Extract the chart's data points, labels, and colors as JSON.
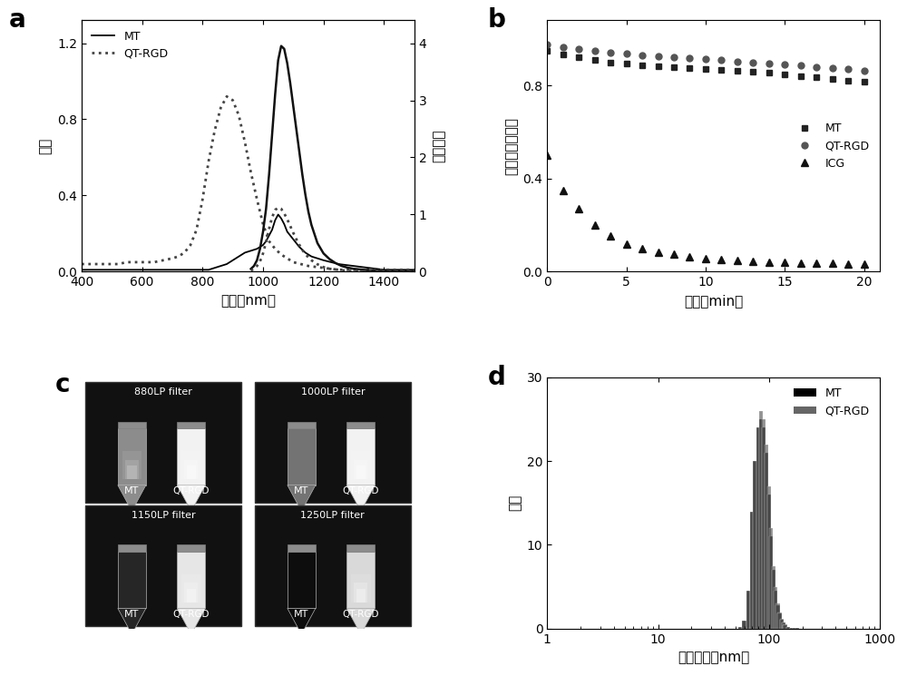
{
  "panel_a": {
    "xlabel": "波长（nm）",
    "ylabel_left": "吸收",
    "ylabel_right": "荆光强度",
    "xlim": [
      400,
      1500
    ],
    "ylim_left": [
      0,
      1.32
    ],
    "ylim_right": [
      0,
      4.4
    ],
    "yticks_left": [
      0.0,
      0.4,
      0.8,
      1.2
    ],
    "yticks_right": [
      0,
      1,
      2,
      3,
      4
    ],
    "xticks": [
      400,
      600,
      800,
      1000,
      1200,
      1400
    ],
    "legend": [
      "MT",
      "QT-RGD"
    ],
    "MT_abs_x": [
      400,
      430,
      460,
      490,
      520,
      550,
      580,
      610,
      640,
      670,
      700,
      720,
      740,
      760,
      780,
      800,
      820,
      840,
      860,
      880,
      900,
      920,
      940,
      960,
      980,
      1000,
      1010,
      1020,
      1030,
      1040,
      1050,
      1060,
      1070,
      1080,
      1090,
      1100,
      1120,
      1140,
      1160,
      1180,
      1200,
      1250,
      1300,
      1350,
      1400,
      1450,
      1500
    ],
    "MT_abs_y": [
      0.01,
      0.01,
      0.01,
      0.01,
      0.01,
      0.01,
      0.01,
      0.01,
      0.01,
      0.01,
      0.01,
      0.01,
      0.01,
      0.01,
      0.01,
      0.01,
      0.01,
      0.02,
      0.03,
      0.04,
      0.06,
      0.08,
      0.1,
      0.11,
      0.12,
      0.14,
      0.16,
      0.19,
      0.22,
      0.27,
      0.3,
      0.28,
      0.25,
      0.21,
      0.19,
      0.17,
      0.13,
      0.1,
      0.08,
      0.07,
      0.06,
      0.04,
      0.03,
      0.02,
      0.01,
      0.01,
      0.01
    ],
    "MT_emi_x": [
      960,
      970,
      980,
      990,
      1000,
      1010,
      1020,
      1030,
      1040,
      1050,
      1060,
      1070,
      1080,
      1090,
      1100,
      1110,
      1120,
      1130,
      1140,
      1150,
      1160,
      1180,
      1200,
      1220,
      1240,
      1260,
      1280,
      1300,
      1320,
      1340,
      1360,
      1400,
      1450,
      1500
    ],
    "MT_emi_y": [
      0.05,
      0.1,
      0.2,
      0.4,
      0.7,
      1.1,
      1.7,
      2.4,
      3.1,
      3.7,
      3.95,
      3.9,
      3.65,
      3.3,
      2.9,
      2.5,
      2.1,
      1.7,
      1.35,
      1.05,
      0.82,
      0.5,
      0.32,
      0.22,
      0.15,
      0.1,
      0.07,
      0.05,
      0.04,
      0.03,
      0.02,
      0.01,
      0.005,
      0.0
    ],
    "QTRGD_abs_x": [
      400,
      430,
      460,
      490,
      520,
      550,
      580,
      610,
      640,
      670,
      700,
      720,
      740,
      760,
      780,
      800,
      820,
      840,
      860,
      880,
      900,
      920,
      940,
      960,
      980,
      1000,
      1020,
      1040,
      1060,
      1080,
      1100,
      1150,
      1200,
      1250,
      1300,
      1350,
      1400,
      1450,
      1500
    ],
    "QTRGD_abs_y": [
      0.04,
      0.04,
      0.04,
      0.04,
      0.04,
      0.05,
      0.05,
      0.05,
      0.05,
      0.06,
      0.07,
      0.08,
      0.1,
      0.14,
      0.22,
      0.38,
      0.58,
      0.74,
      0.86,
      0.92,
      0.9,
      0.82,
      0.68,
      0.52,
      0.38,
      0.25,
      0.16,
      0.12,
      0.09,
      0.07,
      0.05,
      0.03,
      0.02,
      0.01,
      0.01,
      0.01,
      0.01,
      0.01,
      0.01
    ],
    "QTRGD_emi_x": [
      960,
      970,
      980,
      990,
      1000,
      1010,
      1020,
      1030,
      1040,
      1050,
      1060,
      1070,
      1080,
      1090,
      1100,
      1110,
      1120,
      1130,
      1140,
      1150,
      1160,
      1180,
      1200,
      1220,
      1240,
      1260,
      1280,
      1300,
      1350,
      1400,
      1450,
      1500
    ],
    "QTRGD_emi_y": [
      0.02,
      0.05,
      0.1,
      0.18,
      0.32,
      0.52,
      0.75,
      0.95,
      1.08,
      1.12,
      1.1,
      1.02,
      0.92,
      0.8,
      0.68,
      0.57,
      0.47,
      0.38,
      0.31,
      0.25,
      0.2,
      0.13,
      0.08,
      0.05,
      0.04,
      0.025,
      0.015,
      0.01,
      0.005,
      0.003,
      0.001,
      0.0
    ]
  },
  "panel_b": {
    "xlabel": "时间（min）",
    "ylabel": "归一化荆光强度",
    "xlim": [
      0,
      21
    ],
    "ylim": [
      0.0,
      1.08
    ],
    "yticks": [
      0.0,
      0.4,
      0.8
    ],
    "xticks": [
      0,
      5,
      10,
      15,
      20
    ],
    "legend": [
      "MT",
      "QT-RGD",
      "ICG"
    ],
    "MT_x": [
      0,
      1,
      2,
      3,
      4,
      5,
      6,
      7,
      8,
      9,
      10,
      11,
      12,
      13,
      14,
      15,
      16,
      17,
      18,
      19,
      20
    ],
    "MT_y": [
      0.95,
      0.935,
      0.92,
      0.91,
      0.9,
      0.895,
      0.888,
      0.882,
      0.878,
      0.875,
      0.87,
      0.867,
      0.862,
      0.858,
      0.855,
      0.848,
      0.84,
      0.835,
      0.828,
      0.822,
      0.818
    ],
    "QTRGD_x": [
      0,
      1,
      2,
      3,
      4,
      5,
      6,
      7,
      8,
      9,
      10,
      11,
      12,
      13,
      14,
      15,
      16,
      17,
      18,
      19,
      20
    ],
    "QTRGD_y": [
      0.975,
      0.965,
      0.955,
      0.948,
      0.942,
      0.936,
      0.93,
      0.925,
      0.92,
      0.916,
      0.912,
      0.908,
      0.904,
      0.9,
      0.896,
      0.89,
      0.885,
      0.88,
      0.875,
      0.87,
      0.865
    ],
    "ICG_x": [
      0,
      1,
      2,
      3,
      4,
      5,
      6,
      7,
      8,
      9,
      10,
      11,
      12,
      13,
      14,
      15,
      16,
      17,
      18,
      19,
      20
    ],
    "ICG_y": [
      0.5,
      0.35,
      0.27,
      0.2,
      0.155,
      0.12,
      0.1,
      0.085,
      0.075,
      0.065,
      0.058,
      0.052,
      0.048,
      0.045,
      0.042,
      0.04,
      0.038,
      0.036,
      0.035,
      0.034,
      0.033
    ]
  },
  "panel_c": {
    "labels": [
      "880LP filter",
      "1000LP filter",
      "1150LP filter",
      "1250LP filter"
    ],
    "sublabels": [
      [
        "MT",
        "QT-RGD"
      ],
      [
        "MT",
        "QT-RGD"
      ],
      [
        "MT",
        "QT-RGD"
      ],
      [
        "MT",
        "QT-RGD"
      ]
    ],
    "MT_brightness": [
      0.55,
      0.45,
      0.15,
      0.05
    ],
    "QTRGD_brightness": [
      0.95,
      0.95,
      0.9,
      0.85
    ]
  },
  "panel_d": {
    "xlabel": "水合粒径（nm）",
    "ylabel": "强度",
    "ylim": [
      0,
      30
    ],
    "yticks": [
      0,
      10,
      20,
      30
    ],
    "xticks_log": [
      1,
      10,
      100,
      1000
    ],
    "legend": [
      "MT",
      "QT-RGD"
    ],
    "bar_centers": [
      55,
      60,
      65,
      70,
      75,
      80,
      85,
      90,
      95,
      100,
      105,
      110,
      115,
      120,
      125,
      130,
      135,
      140,
      150,
      160,
      170,
      180,
      200,
      220,
      250,
      300,
      350,
      400
    ],
    "bar_heights_MT": [
      0.2,
      1.0,
      4.5,
      14,
      20,
      24,
      25,
      24,
      21,
      16,
      11,
      7,
      4.5,
      2.8,
      1.8,
      1.1,
      0.7,
      0.45,
      0.22,
      0.12,
      0.07,
      0.04,
      0.02,
      0.01,
      0.005,
      0.002,
      0.001,
      0.0
    ],
    "bar_heights_QTRGD": [
      0.2,
      1.0,
      4.5,
      14,
      20,
      24,
      26,
      25,
      22,
      17,
      12,
      7.5,
      5.0,
      3.0,
      1.9,
      1.2,
      0.75,
      0.5,
      0.25,
      0.13,
      0.08,
      0.05,
      0.025,
      0.012,
      0.006,
      0.003,
      0.001,
      0.0
    ],
    "bar_color_MT": "#000000",
    "bar_color_QTRGD": "#666666"
  },
  "font_color": "#000000",
  "background_color": "#ffffff"
}
